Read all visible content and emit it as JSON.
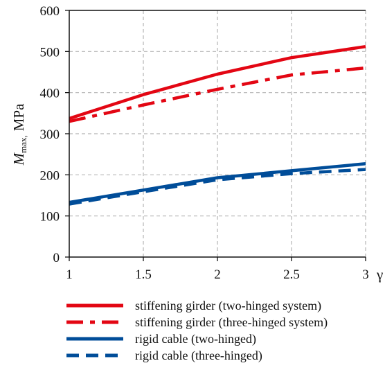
{
  "chart_data": {
    "type": "line",
    "title": "",
    "xlabel": "γ",
    "ylabel": {
      "symbol": "M",
      "subscript": "max,",
      "unit": "MPa"
    },
    "xlim": [
      1,
      3
    ],
    "ylim": [
      0,
      600
    ],
    "x_ticks": [
      1,
      1.5,
      2,
      2.5,
      3
    ],
    "x_tick_labels": [
      "1",
      "1.5",
      "2",
      "2.5",
      "3"
    ],
    "y_ticks": [
      0,
      100,
      200,
      300,
      400,
      500,
      600
    ],
    "y_tick_labels": [
      "0",
      "100",
      "200",
      "300",
      "400",
      "500",
      "600"
    ],
    "grid": true,
    "legend_position": "bottom",
    "x": [
      1,
      1.5,
      2,
      2.5,
      3
    ],
    "series": [
      {
        "name": "stiffening girder (two-hinged system)",
        "color": "#e30613",
        "style": "solid",
        "values": [
          337,
          395,
          445,
          485,
          512
        ]
      },
      {
        "name": "stiffening girder (three-hinged system)",
        "color": "#e30613",
        "style": "dash-dot",
        "values": [
          330,
          370,
          408,
          443,
          460
        ]
      },
      {
        "name": "rigid cable (two-hinged)",
        "color": "#004d99",
        "style": "solid",
        "values": [
          133,
          163,
          193,
          210,
          227
        ]
      },
      {
        "name": "rigid cable (three-hinged)",
        "color": "#004d99",
        "style": "dashed",
        "values": [
          129,
          159,
          188,
          203,
          213
        ]
      }
    ]
  }
}
